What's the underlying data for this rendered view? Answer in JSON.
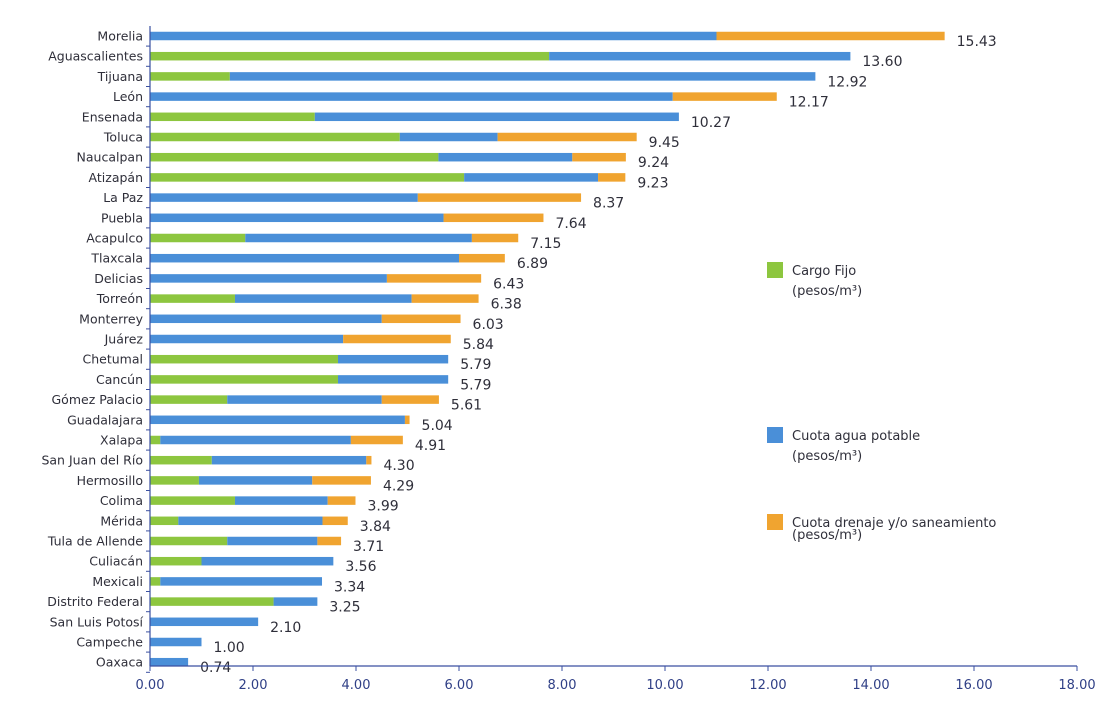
{
  "chart_data": {
    "type": "bar",
    "orientation": "horizontal",
    "stacked": true,
    "xlim": [
      0,
      18
    ],
    "x_ticks": [
      "0.00",
      "2.00",
      "4.00",
      "6.00",
      "8.00",
      "10.00",
      "12.00",
      "14.00",
      "16.00",
      "18.00"
    ],
    "categories": [
      "Morelia",
      "Aguascalientes",
      "Tijuana",
      "León",
      "Ensenada",
      "Toluca",
      "Naucalpan",
      "Atizapán",
      "La Paz",
      "Puebla",
      "Acapulco",
      "Tlaxcala",
      "Delicias",
      "Torreón",
      "Monterrey",
      "Juárez",
      "Chetumal",
      "Cancún",
      "Gómez Palacio",
      "Guadalajara",
      "Xalapa",
      "San Juan del Río",
      "Hermosillo",
      "Colima",
      "Mérida",
      "Tula de Allende",
      "Culiacán",
      "Mexicali",
      "Distrito Federal",
      "San Luis Potosí",
      "Campeche",
      "Oaxaca"
    ],
    "series": [
      {
        "name": "Cargo Fijo (pesos/m³)",
        "color": "#8dc63f",
        "values": [
          0,
          7.75,
          1.55,
          0,
          3.2,
          4.85,
          5.6,
          6.1,
          0,
          0,
          1.85,
          0,
          0,
          1.65,
          0,
          0,
          3.65,
          3.65,
          1.5,
          0,
          0.2,
          1.2,
          0.95,
          1.65,
          0.55,
          1.5,
          1.0,
          0.2,
          2.4,
          0,
          0,
          0
        ]
      },
      {
        "name": "Cuota agua potable (pesos/m³)",
        "color": "#4a8fd8",
        "values": [
          11.0,
          5.85,
          11.37,
          10.15,
          7.07,
          1.9,
          2.6,
          2.6,
          5.2,
          5.7,
          4.4,
          6.0,
          4.6,
          3.43,
          4.5,
          3.75,
          2.14,
          2.14,
          3.0,
          4.95,
          3.7,
          3.0,
          2.2,
          1.8,
          2.8,
          1.75,
          2.56,
          3.14,
          0.85,
          2.1,
          1.0,
          0.74
        ]
      },
      {
        "name": "Cuota drenaje y/o saneamiento (pesos/m³)",
        "color": "#f0a430",
        "values": [
          4.43,
          0,
          0,
          2.02,
          0,
          2.7,
          1.04,
          0.53,
          3.17,
          1.94,
          0.9,
          0.89,
          1.83,
          1.3,
          1.53,
          2.09,
          0,
          0,
          1.11,
          0.09,
          1.01,
          0.1,
          1.14,
          0.54,
          0.49,
          0.46,
          0,
          0,
          0,
          0,
          0,
          0
        ]
      }
    ],
    "totals": [
      "15.43",
      "13.60",
      "12.92",
      "12.17",
      "10.27",
      "9.45",
      "9.24",
      "9.23",
      "8.37",
      "7.64",
      "7.15",
      "6.89",
      "6.43",
      "6.38",
      "6.03",
      "5.84",
      "5.79",
      "5.79",
      "5.61",
      "5.04",
      "4.91",
      "4.30",
      "4.29",
      "3.99",
      "3.84",
      "3.71",
      "3.56",
      "3.34",
      "3.25",
      "2.10",
      "1.00",
      "0.74"
    ],
    "legend": {
      "placement": "right",
      "entries": [
        {
          "line1": "Cargo Fijo",
          "line2": "(pesos/m³)",
          "color": "#8dc63f"
        },
        {
          "line1": "Cuota agua potable",
          "line2": "(pesos/m³)",
          "color": "#4a8fd8"
        },
        {
          "line1": "Cuota drenaje y/o saneamiento",
          "line2": "(pesos/m³)",
          "color": "#f0a430"
        }
      ]
    },
    "grid": false
  }
}
